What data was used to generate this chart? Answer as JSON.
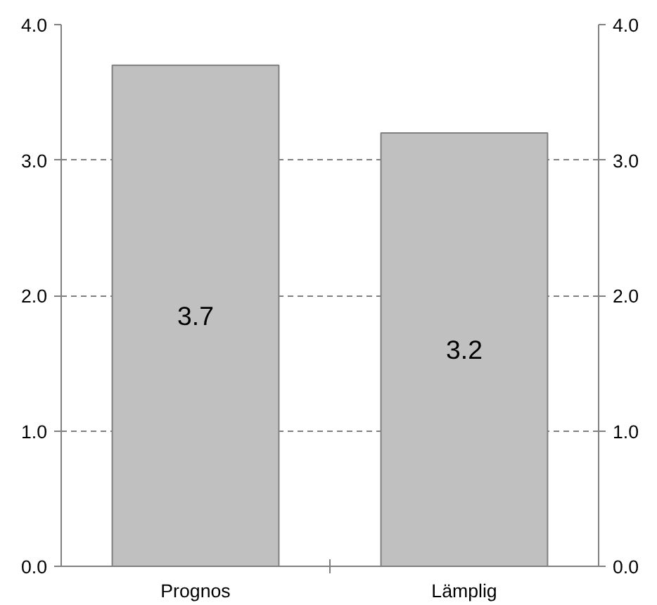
{
  "chart_data": {
    "type": "bar",
    "categories": [
      "Prognos",
      "Lämplig"
    ],
    "values": [
      3.7,
      3.2
    ],
    "color": "#c0c0c0",
    "data_labels": true,
    "ylim": [
      0,
      4
    ],
    "yticks": [
      {
        "value": 0,
        "label": "0.0"
      },
      {
        "value": 1,
        "label": "1.0"
      },
      {
        "value": 2,
        "label": "2.0"
      },
      {
        "value": 3,
        "label": "3.0"
      },
      {
        "value": 4,
        "label": "4.0"
      }
    ],
    "y2lim": [
      0,
      4
    ],
    "y2ticks": [
      {
        "value": 0,
        "label": "0.0"
      },
      {
        "value": 1,
        "label": "1.0"
      },
      {
        "value": 2,
        "label": "2.0"
      },
      {
        "value": 3,
        "label": "3.0"
      },
      {
        "value": 4,
        "label": "4.0"
      }
    ],
    "grid": "y"
  }
}
